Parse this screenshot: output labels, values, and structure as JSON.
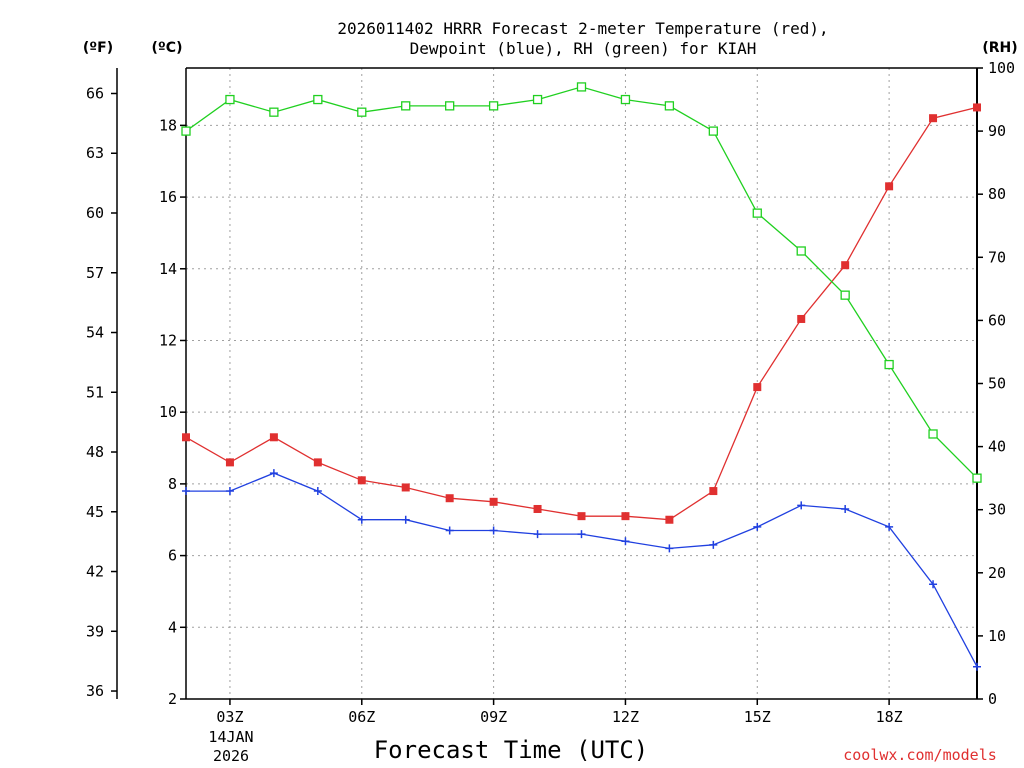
{
  "chart_data": {
    "type": "line",
    "title": "2026011402 HRRR Forecast 2-meter Temperature (red),",
    "title_line2": "Dewpoint (blue), RH (green) for KIAH",
    "xlabel": "Forecast Time (UTC)",
    "date_label_day": "14JAN",
    "date_label_year": "2026",
    "credit": "coolwx.com/models",
    "credit_color": "#e03030",
    "x_hours": [
      2,
      3,
      4,
      5,
      6,
      7,
      8,
      9,
      10,
      11,
      12,
      13,
      14,
      15,
      16,
      17,
      18,
      19,
      20
    ],
    "xlim": [
      2,
      20
    ],
    "x_ticks": [
      {
        "hour": 3,
        "label": "03Z"
      },
      {
        "hour": 6,
        "label": "06Z"
      },
      {
        "hour": 9,
        "label": "09Z"
      },
      {
        "hour": 12,
        "label": "12Z"
      },
      {
        "hour": 15,
        "label": "15Z"
      },
      {
        "hour": 18,
        "label": "18Z"
      }
    ],
    "left_unit_f": "(ºF)",
    "left_unit_c": "(ºC)",
    "right_unit": "(RH)",
    "ylim_c": [
      2,
      19.6
    ],
    "y_ticks_c": [
      2,
      4,
      6,
      8,
      10,
      12,
      14,
      16,
      18
    ],
    "y_ticks_f": [
      36,
      39,
      42,
      45,
      48,
      51,
      54,
      57,
      60,
      63,
      66
    ],
    "ylim_rh": [
      0,
      100
    ],
    "y_ticks_rh": [
      0,
      10,
      20,
      30,
      40,
      50,
      60,
      70,
      80,
      90,
      100
    ],
    "series": [
      {
        "name": "2-meter Temperature",
        "color": "#e03030",
        "marker": "filled-square",
        "axis": "celsius",
        "values": [
          9.3,
          8.6,
          9.3,
          8.6,
          8.1,
          7.9,
          7.6,
          7.5,
          7.3,
          7.1,
          7.1,
          7.0,
          7.8,
          10.7,
          12.6,
          14.1,
          16.3,
          18.2,
          18.5
        ]
      },
      {
        "name": "Dewpoint",
        "color": "#2040e0",
        "marker": "plus",
        "axis": "celsius",
        "values": [
          7.8,
          7.8,
          8.3,
          7.8,
          7.0,
          7.0,
          6.7,
          6.7,
          6.6,
          6.6,
          6.4,
          6.2,
          6.3,
          6.8,
          7.4,
          7.3,
          6.8,
          5.2,
          2.9
        ]
      },
      {
        "name": "RH",
        "color": "#20d020",
        "marker": "open-square",
        "axis": "rh",
        "values": [
          90,
          95,
          93,
          95,
          93,
          94,
          94,
          94,
          95,
          97,
          95,
          94,
          90,
          77,
          71,
          64,
          53,
          42,
          35
        ]
      }
    ]
  }
}
